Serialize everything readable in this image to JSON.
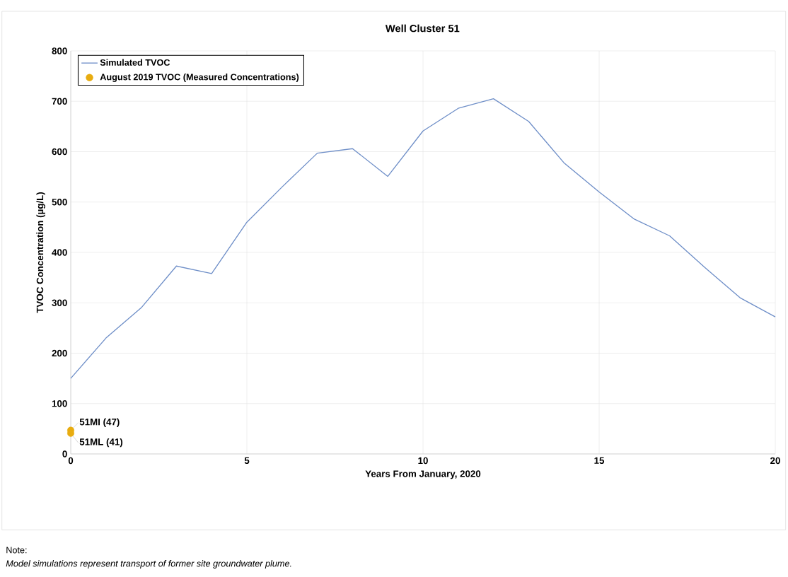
{
  "chart_data": {
    "type": "line",
    "title": "Well Cluster 51",
    "xlabel": "Years From January, 2020",
    "ylabel": "TVOC Concentration (µg/L)",
    "xlim": [
      0,
      20
    ],
    "xticks": [
      0,
      5,
      10,
      15,
      20
    ],
    "ylim": [
      0,
      800
    ],
    "yticks": [
      0,
      100,
      200,
      300,
      400,
      500,
      600,
      700,
      800
    ],
    "grid": true,
    "legend": "top left",
    "series": [
      {
        "name": "Simulated TVOC",
        "color": "#6f8fc8",
        "marker": "none",
        "x": [
          0,
          1,
          2,
          3,
          4,
          5,
          6,
          7,
          8,
          9,
          10,
          11,
          12,
          13,
          14,
          15,
          16,
          17,
          18,
          19,
          20
        ],
        "values": [
          150,
          230,
          290,
          373,
          358,
          460,
          530,
          597,
          606,
          551,
          641,
          686,
          705,
          660,
          578,
          520,
          466,
          433,
          370,
          310,
          272
        ]
      },
      {
        "name": "August 2019 TVOC (Measured Concentrations)",
        "type": "scatter",
        "color": "#e8ac10",
        "marker": "circle",
        "x": [
          0,
          0
        ],
        "values": [
          47,
          41
        ],
        "value_labels": [
          "51MI (47)",
          "51ML (41)"
        ]
      }
    ],
    "annotations": [
      "Note:",
      "Model simulations represent transport of former site groundwater plume."
    ]
  }
}
